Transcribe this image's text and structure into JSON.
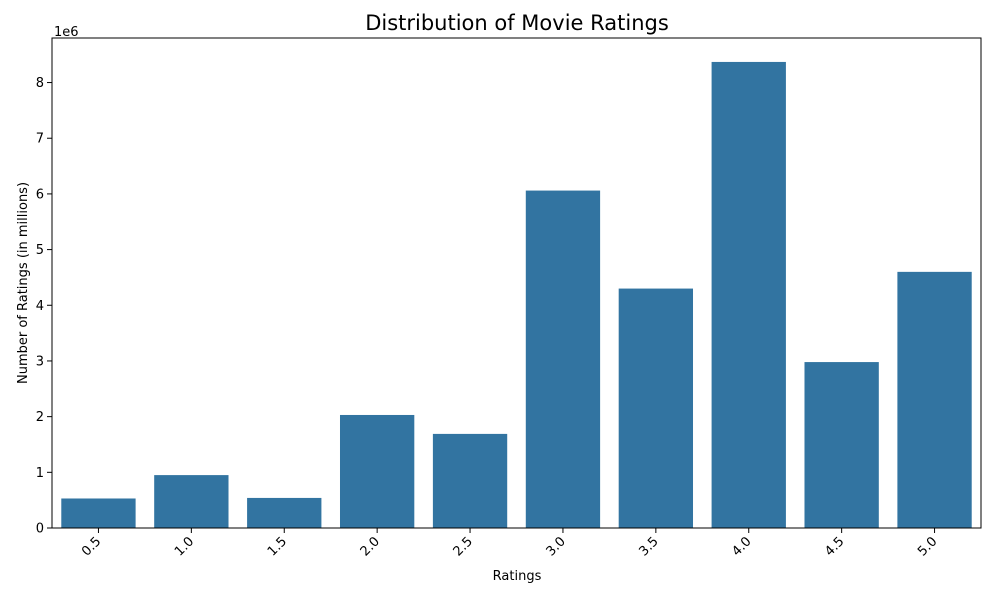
{
  "chart_data": {
    "type": "bar",
    "title": "Distribution of Movie Ratings",
    "xlabel": "Ratings",
    "ylabel": "Number of Ratings (in millions)",
    "y_offset_label": "1e6",
    "categories": [
      "0.5",
      "1.0",
      "1.5",
      "2.0",
      "2.5",
      "3.0",
      "3.5",
      "4.0",
      "4.5",
      "5.0"
    ],
    "values": [
      530000,
      950000,
      540000,
      2030000,
      1690000,
      6060000,
      4300000,
      8370000,
      2980000,
      4600000
    ],
    "ylim": [
      0,
      8800000
    ],
    "yticks": [
      0,
      1,
      2,
      3,
      4,
      5,
      6,
      7,
      8
    ],
    "ytick_scale": 1000000,
    "bar_color": "#3274a1",
    "grid": false,
    "legend": "none"
  }
}
